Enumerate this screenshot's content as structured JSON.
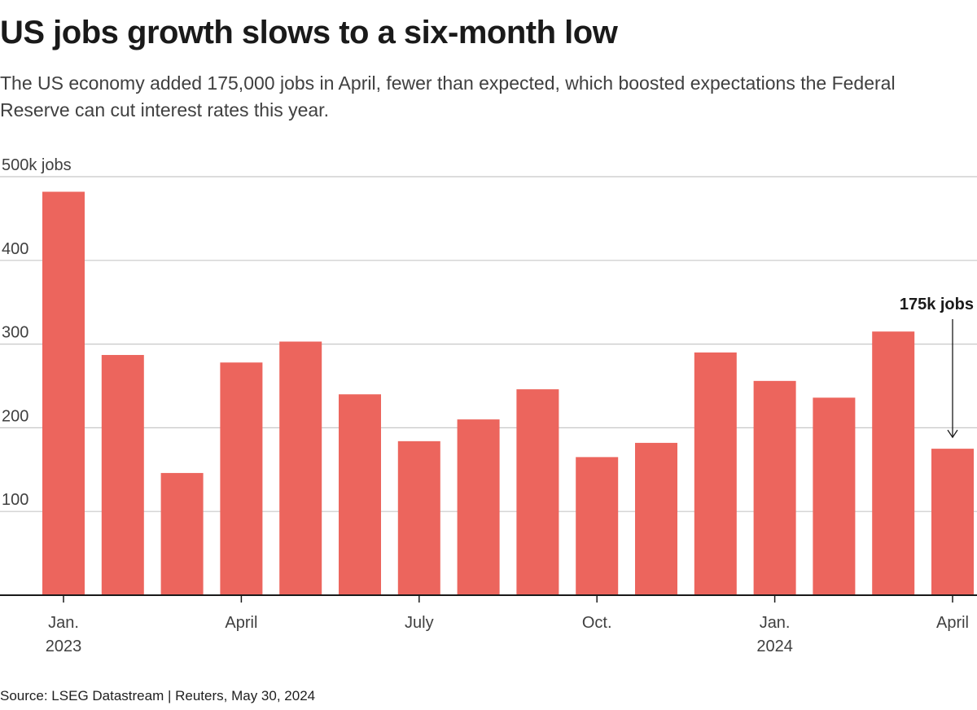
{
  "title": "US jobs growth slows to a six-month low",
  "subtitle": "The US economy added 175,000 jobs in April, fewer than expected, which boosted expectations the Federal Reserve can cut interest rates this year.",
  "source": "Source: LSEG Datastream | Reuters, May 30, 2024",
  "colors": {
    "bar": "#ec655d",
    "grid": "#c8c8c8",
    "axis": "#1a1a1a",
    "text": "#404040"
  },
  "chart_data": {
    "type": "bar",
    "title": "US jobs growth slows to a six-month low",
    "ylabel": "500k jobs",
    "xlabel": "",
    "ylim": [
      0,
      500
    ],
    "grid": true,
    "categories": [
      "Jan. 2023",
      "Feb. 2023",
      "Mar. 2023",
      "Apr. 2023",
      "May 2023",
      "Jun. 2023",
      "Jul. 2023",
      "Aug. 2023",
      "Sep. 2023",
      "Oct. 2023",
      "Nov. 2023",
      "Dec. 2023",
      "Jan. 2024",
      "Feb. 2024",
      "Mar. 2024",
      "Apr. 2024"
    ],
    "values": [
      482,
      287,
      146,
      278,
      303,
      240,
      184,
      210,
      246,
      165,
      182,
      290,
      256,
      236,
      315,
      175
    ],
    "y_ticks": [
      {
        "value": 100,
        "label": "100"
      },
      {
        "value": 200,
        "label": "200"
      },
      {
        "value": 300,
        "label": "300"
      },
      {
        "value": 400,
        "label": "400"
      },
      {
        "value": 500,
        "label": "500k jobs"
      }
    ],
    "x_ticks": [
      {
        "index": 0,
        "line1": "Jan.",
        "line2": "2023"
      },
      {
        "index": 3,
        "line1": "April",
        "line2": ""
      },
      {
        "index": 6,
        "line1": "July",
        "line2": ""
      },
      {
        "index": 9,
        "line1": "Oct.",
        "line2": ""
      },
      {
        "index": 12,
        "line1": "Jan.",
        "line2": "2024"
      },
      {
        "index": 15,
        "line1": "April",
        "line2": ""
      }
    ],
    "annotations": [
      {
        "index": 15,
        "text": "175k jobs"
      }
    ]
  }
}
